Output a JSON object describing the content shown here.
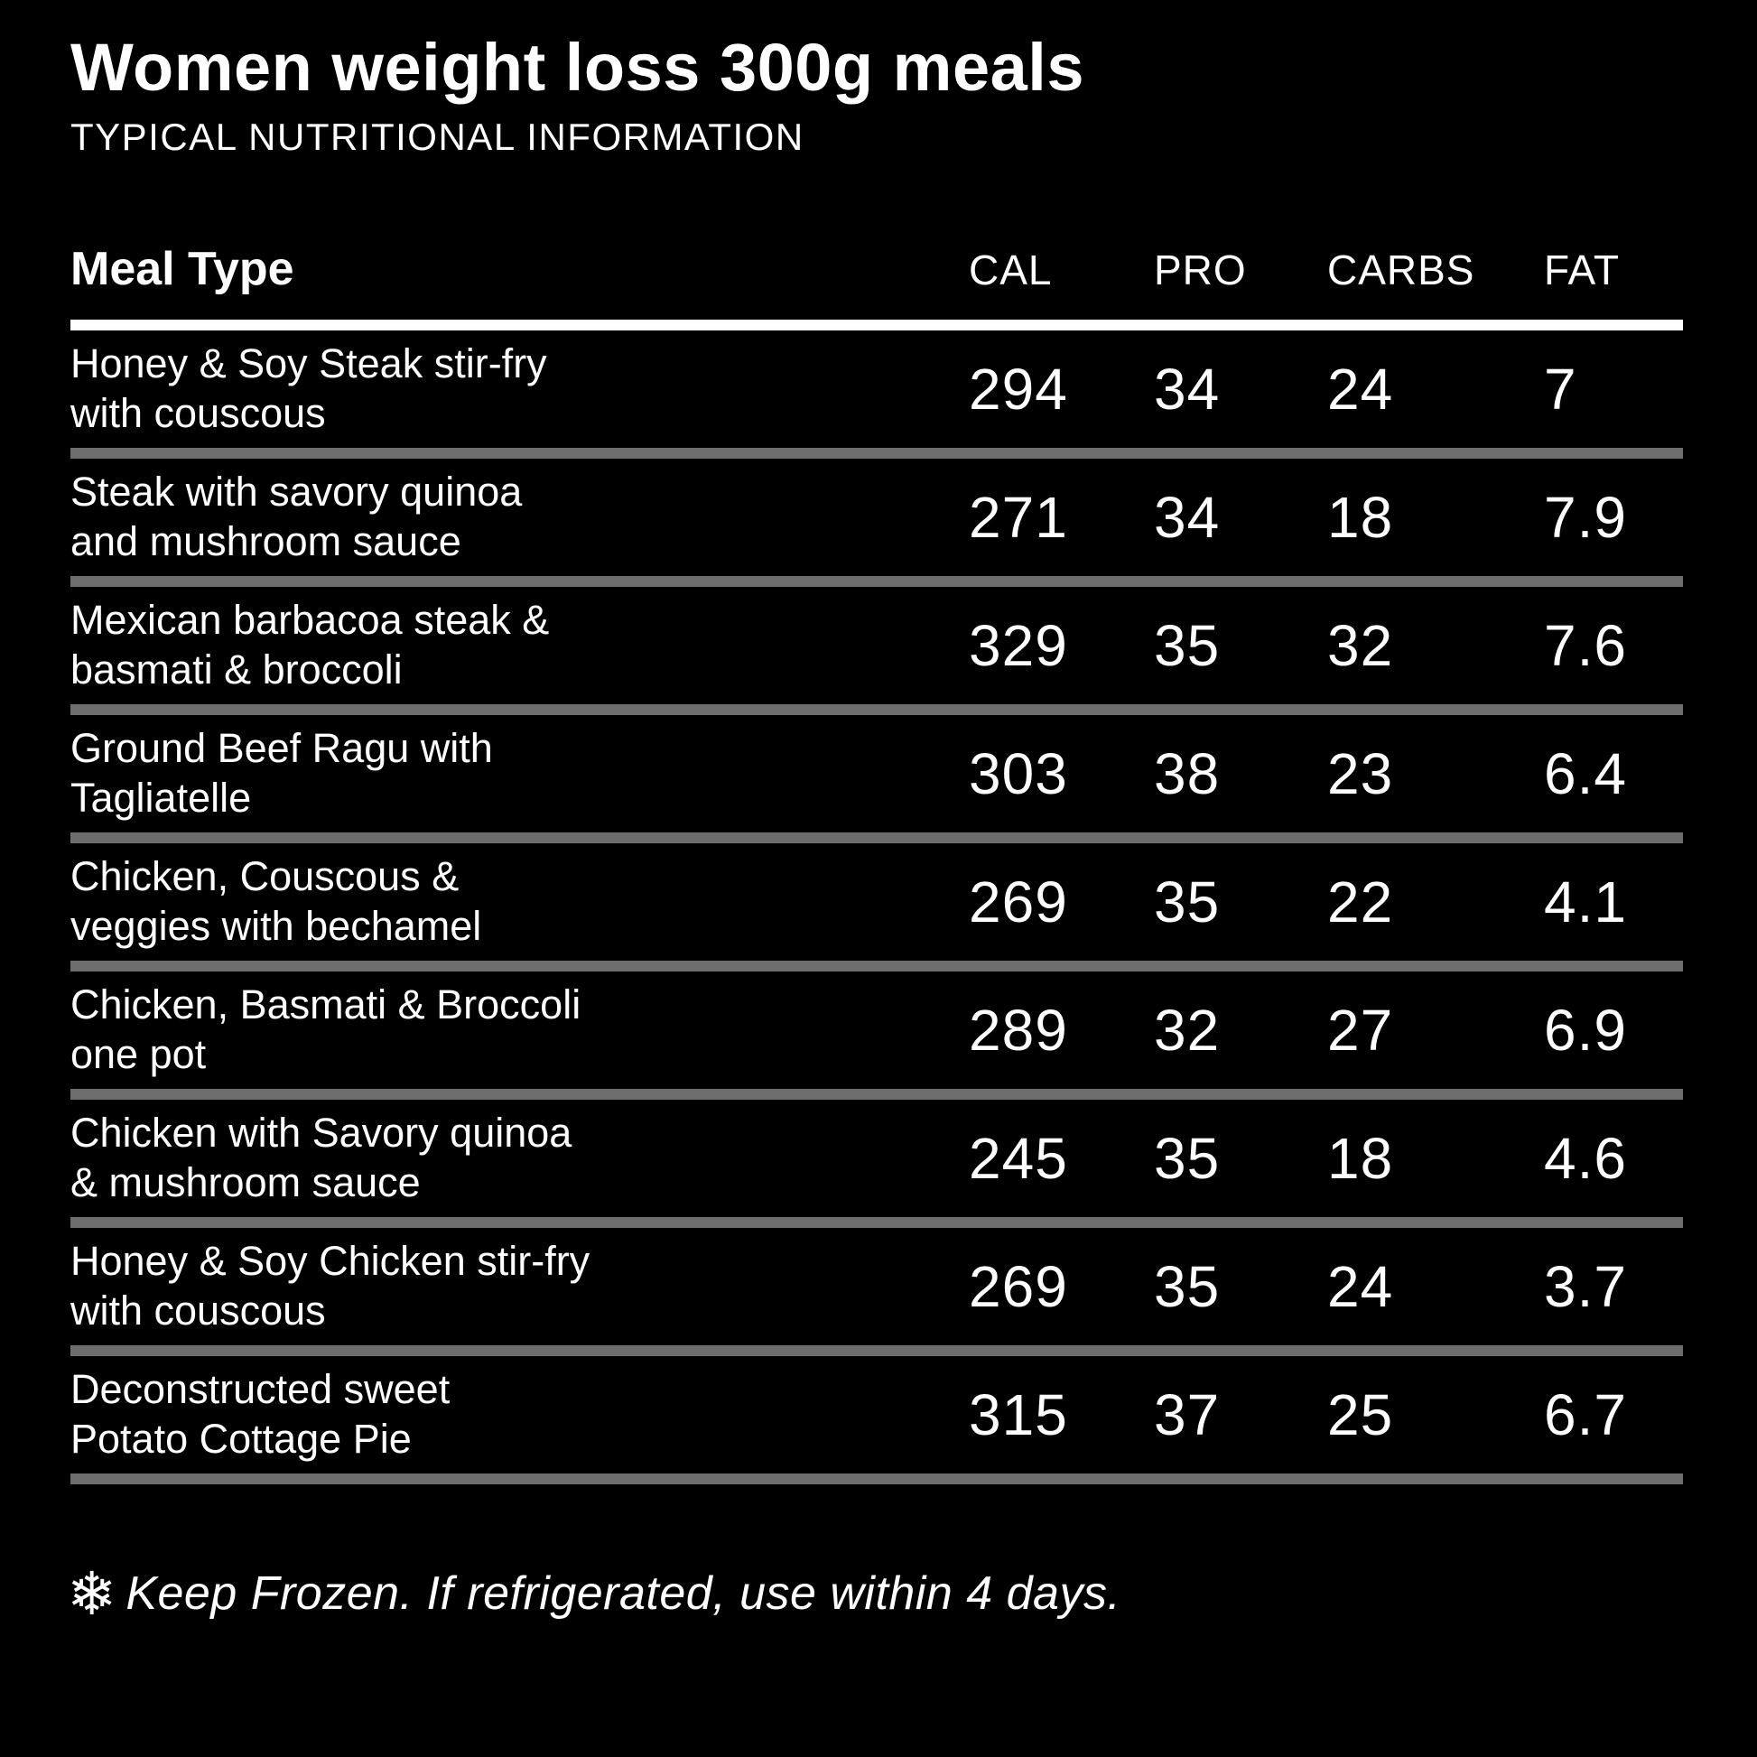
{
  "title": "Women weight loss 300g meals",
  "subtitle": "TYPICAL NUTRITIONAL INFORMATION",
  "table": {
    "columns": {
      "meal": "Meal Type",
      "cal": "CAL",
      "pro": "PRO",
      "carbs": "CARBS",
      "fat": "FAT"
    },
    "rows": [
      {
        "name_line1": "Honey & Soy Steak stir-fry",
        "name_line2": "with couscous",
        "cal": "294",
        "pro": "34",
        "carbs": "24",
        "fat": "7"
      },
      {
        "name_line1": "Steak with savory quinoa",
        "name_line2": "and mushroom sauce",
        "cal": "271",
        "pro": "34",
        "carbs": "18",
        "fat": "7.9"
      },
      {
        "name_line1": "Mexican barbacoa steak &",
        "name_line2": "basmati & broccoli",
        "cal": "329",
        "pro": "35",
        "carbs": "32",
        "fat": "7.6"
      },
      {
        "name_line1": "Ground Beef Ragu with",
        "name_line2": "Tagliatelle",
        "cal": "303",
        "pro": "38",
        "carbs": "23",
        "fat": "6.4"
      },
      {
        "name_line1": "Chicken, Couscous &",
        "name_line2": "veggies with bechamel",
        "cal": "269",
        "pro": "35",
        "carbs": "22",
        "fat": "4.1"
      },
      {
        "name_line1": "Chicken, Basmati & Broccoli",
        "name_line2": "one pot",
        "cal": "289",
        "pro": "32",
        "carbs": "27",
        "fat": "6.9"
      },
      {
        "name_line1": "Chicken with Savory quinoa",
        "name_line2": "& mushroom sauce",
        "cal": "245",
        "pro": "35",
        "carbs": "18",
        "fat": "4.6"
      },
      {
        "name_line1": "Honey & Soy Chicken stir-fry",
        "name_line2": "with couscous",
        "cal": "269",
        "pro": "35",
        "carbs": "24",
        "fat": "3.7"
      },
      {
        "name_line1": "Deconstructed sweet",
        "name_line2": "Potato Cottage Pie",
        "cal": "315",
        "pro": "37",
        "carbs": "25",
        "fat": "6.7"
      }
    ]
  },
  "footer": {
    "snowflake_glyph": "❄",
    "text": "Keep Frozen. If refrigerated, use within 4 days."
  },
  "colors": {
    "background": "#000000",
    "text": "#ffffff",
    "header_rule": "#ffffff",
    "row_divider": "#6e6e6e"
  }
}
